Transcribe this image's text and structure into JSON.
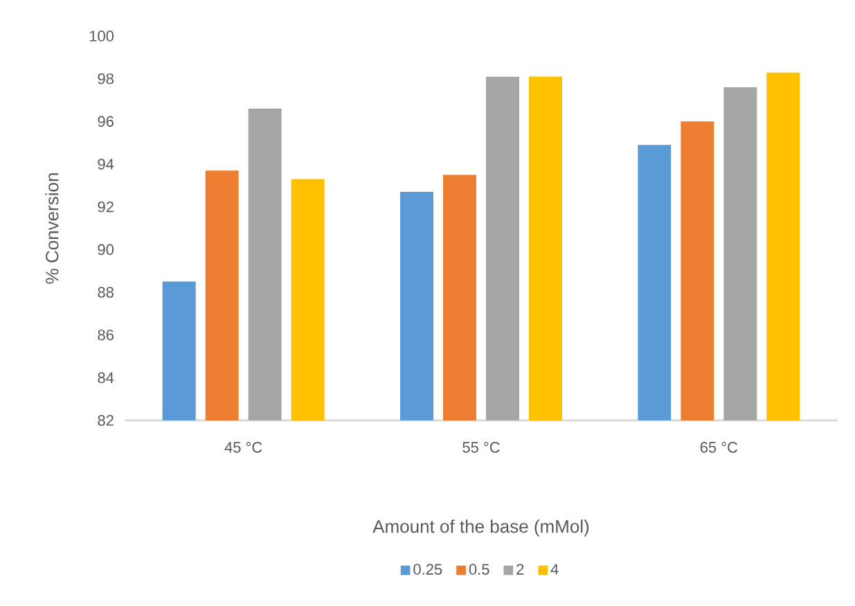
{
  "chart_data": {
    "type": "bar",
    "xlabel": "Amount of the base (mMol)",
    "ylabel": "% Conversion",
    "categories": [
      "45 °C",
      "55 °C",
      "65 °C"
    ],
    "series": [
      {
        "name": "0.25",
        "color": "#5b9bd5",
        "values": [
          88.5,
          92.7,
          94.9
        ]
      },
      {
        "name": "0.5",
        "color": "#ed7d31",
        "values": [
          93.7,
          93.5,
          96.0
        ]
      },
      {
        "name": "2",
        "color": "#a5a5a5",
        "values": [
          96.6,
          98.1,
          97.6
        ]
      },
      {
        "name": "4",
        "color": "#ffc000",
        "values": [
          93.3,
          98.1,
          98.3
        ]
      }
    ],
    "ylim": [
      82,
      100
    ],
    "yticks": [
      82,
      84,
      86,
      88,
      90,
      92,
      94,
      96,
      98,
      100
    ],
    "legend": "bottom"
  }
}
